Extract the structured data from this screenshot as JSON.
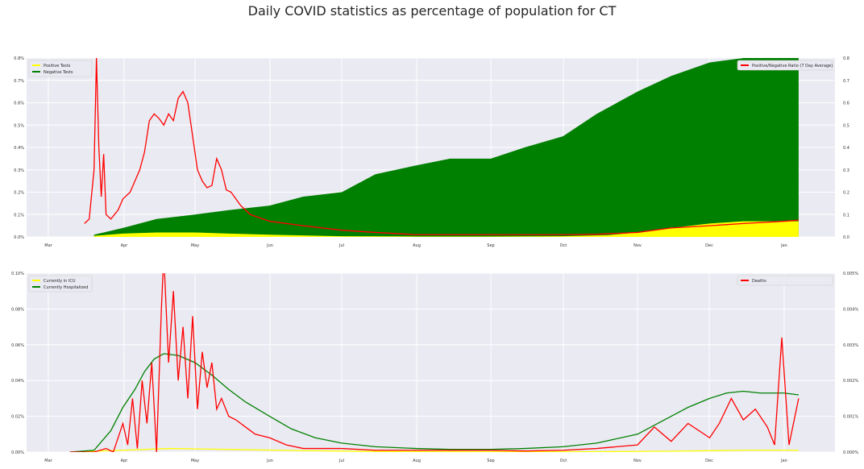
{
  "figure": {
    "title": "Daily COVID statistics as percentage of population for CT"
  },
  "chart_data": [
    {
      "type": "area",
      "panel": "top",
      "x_axis": {
        "type": "date",
        "start_date": "2020-03-01",
        "end_date": "2021-01-10",
        "tick_labels": [
          "Mar",
          "Apr",
          "May",
          "Jun",
          "Jul",
          "Aug",
          "Sep",
          "Oct",
          "Nov",
          "Dec",
          "Jan"
        ]
      },
      "y_left": {
        "ylim": [
          0,
          0.8
        ],
        "tick_labels": [
          "0.0%",
          "0.1%",
          "0.2%",
          "0.3%",
          "0.4%",
          "0.5%",
          "0.6%",
          "0.7%",
          "0.8%"
        ]
      },
      "y_right": {
        "ylim": [
          0,
          0.8
        ],
        "tick_labels": [
          "0.0",
          "0.1",
          "0.2",
          "0.3",
          "0.4",
          "0.5",
          "0.6",
          "0.7",
          "0.8"
        ]
      },
      "grid": true,
      "legend_left": {
        "placement": "top-left",
        "entries": [
          "Positive Tests",
          "Negative Tests"
        ]
      },
      "legend_right": {
        "placement": "top-right",
        "entries": [
          "Positive/Negative Ratio (7 Day Average)"
        ]
      },
      "series": [
        {
          "name": "Positive Tests",
          "kind": "stacked-area",
          "color": "#ffff00",
          "axis": "left",
          "unit": "% of population",
          "x": [
            "2020-03-20",
            "2020-04-01",
            "2020-04-15",
            "2020-05-01",
            "2020-05-15",
            "2020-06-01",
            "2020-07-01",
            "2020-08-01",
            "2020-09-01",
            "2020-10-01",
            "2020-10-20",
            "2020-11-01",
            "2020-11-15",
            "2020-12-01",
            "2020-12-15",
            "2021-01-01",
            "2021-01-07"
          ],
          "y": [
            0.005,
            0.015,
            0.02,
            0.02,
            0.015,
            0.01,
            0.003,
            0.002,
            0.002,
            0.003,
            0.008,
            0.02,
            0.04,
            0.06,
            0.07,
            0.07,
            0.07
          ]
        },
        {
          "name": "Negative Tests",
          "kind": "stacked-area",
          "color": "#008000",
          "axis": "left",
          "unit": "% of population",
          "x": [
            "2020-03-20",
            "2020-04-01",
            "2020-04-15",
            "2020-05-01",
            "2020-05-15",
            "2020-06-01",
            "2020-06-15",
            "2020-07-01",
            "2020-07-15",
            "2020-08-01",
            "2020-08-15",
            "2020-09-01",
            "2020-09-15",
            "2020-10-01",
            "2020-10-15",
            "2020-11-01",
            "2020-11-15",
            "2020-12-01",
            "2020-12-15",
            "2021-01-01",
            "2021-01-07"
          ],
          "y": [
            0.01,
            0.04,
            0.08,
            0.1,
            0.12,
            0.14,
            0.18,
            0.2,
            0.28,
            0.32,
            0.35,
            0.35,
            0.4,
            0.45,
            0.55,
            0.65,
            0.72,
            0.78,
            0.8,
            0.8,
            0.8
          ]
        },
        {
          "name": "Positive/Negative Ratio (7 Day Average)",
          "kind": "line",
          "color": "#ff0000",
          "axis": "right",
          "x": [
            "2020-03-16",
            "2020-03-18",
            "2020-03-20",
            "2020-03-21",
            "2020-03-22",
            "2020-03-23",
            "2020-03-24",
            "2020-03-25",
            "2020-03-27",
            "2020-03-30",
            "2020-04-01",
            "2020-04-04",
            "2020-04-06",
            "2020-04-08",
            "2020-04-10",
            "2020-04-12",
            "2020-04-14",
            "2020-04-16",
            "2020-04-18",
            "2020-04-20",
            "2020-04-22",
            "2020-04-24",
            "2020-04-26",
            "2020-04-28",
            "2020-04-30",
            "2020-05-02",
            "2020-05-04",
            "2020-05-06",
            "2020-05-08",
            "2020-05-10",
            "2020-05-12",
            "2020-05-14",
            "2020-05-16",
            "2020-05-18",
            "2020-05-20",
            "2020-05-24",
            "2020-06-01",
            "2020-06-15",
            "2020-07-01",
            "2020-07-15",
            "2020-08-01",
            "2020-09-01",
            "2020-10-01",
            "2020-10-15",
            "2020-11-01",
            "2020-11-15",
            "2020-12-01",
            "2020-12-15",
            "2021-01-01",
            "2021-01-07"
          ],
          "y": [
            0.06,
            0.08,
            0.3,
            0.8,
            0.4,
            0.18,
            0.37,
            0.1,
            0.08,
            0.12,
            0.17,
            0.2,
            0.25,
            0.3,
            0.38,
            0.52,
            0.55,
            0.53,
            0.5,
            0.55,
            0.52,
            0.62,
            0.65,
            0.6,
            0.45,
            0.3,
            0.25,
            0.22,
            0.23,
            0.35,
            0.3,
            0.21,
            0.2,
            0.17,
            0.14,
            0.1,
            0.07,
            0.05,
            0.03,
            0.02,
            0.01,
            0.01,
            0.01,
            0.012,
            0.02,
            0.04,
            0.05,
            0.06,
            0.07,
            0.075
          ]
        }
      ]
    },
    {
      "type": "line",
      "panel": "bottom",
      "x_axis": {
        "type": "date",
        "start_date": "2020-03-01",
        "end_date": "2021-01-10",
        "tick_labels": [
          "Mar",
          "Apr",
          "May",
          "Jun",
          "Jul",
          "Aug",
          "Sep",
          "Oct",
          "Nov",
          "Dec",
          "Jan"
        ]
      },
      "y_left": {
        "ylim": [
          0,
          0.1
        ],
        "tick_labels": [
          "0.00%",
          "0.02%",
          "0.04%",
          "0.06%",
          "0.08%",
          "0.10%"
        ]
      },
      "y_right": {
        "ylim": [
          0,
          0.005
        ],
        "tick_labels": [
          "0.000%",
          "0.001%",
          "0.002%",
          "0.003%",
          "0.004%",
          "0.005%"
        ]
      },
      "grid": true,
      "legend_left": {
        "placement": "top-left",
        "entries": [
          "Currently in ICU",
          "Currently Hospitalized"
        ]
      },
      "legend_right": {
        "placement": "top-right",
        "entries": [
          "Deaths"
        ]
      },
      "series": [
        {
          "name": "Currently in ICU",
          "color": "#ffff00",
          "axis": "left",
          "unit": "% of population",
          "x": [
            "2020-03-10",
            "2020-04-01",
            "2020-04-20",
            "2020-05-15",
            "2020-06-15",
            "2020-07-15",
            "2020-09-01",
            "2020-10-15",
            "2020-11-15",
            "2020-12-15",
            "2021-01-07"
          ],
          "y": [
            0,
            0.001,
            0.002,
            0.0015,
            0.0008,
            0.0003,
            0.0002,
            0.0002,
            0.0005,
            0.001,
            0.001
          ]
        },
        {
          "name": "Currently Hospitalized",
          "color": "#008000",
          "axis": "left",
          "unit": "% of population",
          "x": [
            "2020-03-10",
            "2020-03-20",
            "2020-03-27",
            "2020-04-01",
            "2020-04-06",
            "2020-04-10",
            "2020-04-14",
            "2020-04-18",
            "2020-04-24",
            "2020-05-01",
            "2020-05-08",
            "2020-05-15",
            "2020-05-22",
            "2020-06-01",
            "2020-06-10",
            "2020-06-20",
            "2020-07-01",
            "2020-07-15",
            "2020-08-01",
            "2020-08-15",
            "2020-09-01",
            "2020-09-15",
            "2020-10-01",
            "2020-10-15",
            "2020-11-01",
            "2020-11-08",
            "2020-11-15",
            "2020-11-22",
            "2020-12-01",
            "2020-12-08",
            "2020-12-15",
            "2020-12-22",
            "2021-01-01",
            "2021-01-07"
          ],
          "y": [
            0,
            0.001,
            0.012,
            0.025,
            0.035,
            0.045,
            0.052,
            0.055,
            0.054,
            0.05,
            0.043,
            0.035,
            0.028,
            0.02,
            0.013,
            0.008,
            0.005,
            0.003,
            0.002,
            0.0015,
            0.0015,
            0.002,
            0.003,
            0.005,
            0.01,
            0.015,
            0.02,
            0.025,
            0.03,
            0.033,
            0.034,
            0.033,
            0.033,
            0.032
          ]
        },
        {
          "name": "Deaths",
          "color": "#ff0000",
          "axis": "right",
          "unit": "% of population",
          "x": [
            "2020-03-10",
            "2020-03-20",
            "2020-03-25",
            "2020-03-28",
            "2020-04-01",
            "2020-04-03",
            "2020-04-05",
            "2020-04-07",
            "2020-04-09",
            "2020-04-11",
            "2020-04-13",
            "2020-04-15",
            "2020-04-17",
            "2020-04-18",
            "2020-04-20",
            "2020-04-22",
            "2020-04-24",
            "2020-04-26",
            "2020-04-28",
            "2020-04-30",
            "2020-05-02",
            "2020-05-04",
            "2020-05-06",
            "2020-05-08",
            "2020-05-10",
            "2020-05-12",
            "2020-05-15",
            "2020-05-18",
            "2020-05-22",
            "2020-05-26",
            "2020-06-01",
            "2020-06-08",
            "2020-06-15",
            "2020-06-22",
            "2020-07-01",
            "2020-07-15",
            "2020-08-01",
            "2020-08-15",
            "2020-09-01",
            "2020-09-15",
            "2020-10-01",
            "2020-10-15",
            "2020-11-01",
            "2020-11-08",
            "2020-11-15",
            "2020-11-22",
            "2020-12-01",
            "2020-12-05",
            "2020-12-10",
            "2020-12-15",
            "2020-12-20",
            "2020-12-25",
            "2020-12-28",
            "2020-12-31",
            "2021-01-03",
            "2021-01-07"
          ],
          "y": [
            0,
            0,
            0.0001,
            0,
            0.0008,
            0.0002,
            0.0015,
            0.0001,
            0.002,
            0.0008,
            0.0025,
            0,
            0.004,
            0.0055,
            0.0025,
            0.0045,
            0.002,
            0.0035,
            0.0015,
            0.0038,
            0.0012,
            0.0028,
            0.0018,
            0.0025,
            0.0012,
            0.0015,
            0.001,
            0.0009,
            0.0007,
            0.0005,
            0.0004,
            0.0002,
            0.0001,
            0.0001,
            0.0001,
            5e-05,
            5e-05,
            5e-05,
            5e-05,
            3e-05,
            5e-05,
            0.0001,
            0.0002,
            0.0007,
            0.0003,
            0.0008,
            0.0004,
            0.0008,
            0.0015,
            0.0009,
            0.0012,
            0.0007,
            0.0002,
            0.0032,
            0.0002,
            0.0015
          ]
        }
      ]
    }
  ]
}
